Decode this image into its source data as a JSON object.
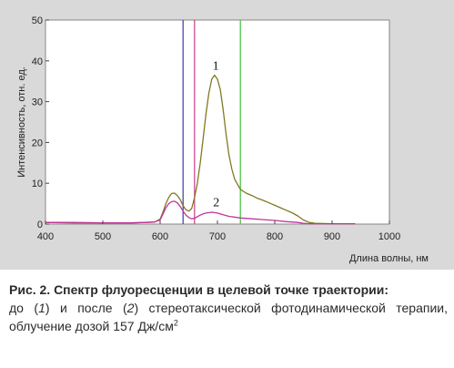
{
  "chart_data": {
    "type": "line",
    "xlabel": "Длина волны, нм",
    "ylabel": "Интенсивность, отн. ед.",
    "xlim": [
      400,
      1000
    ],
    "ylim": [
      0,
      50
    ],
    "xticks": [
      400,
      500,
      600,
      700,
      800,
      900,
      1000
    ],
    "yticks": [
      0,
      10,
      20,
      30,
      40,
      50
    ],
    "grid": false,
    "series": [
      {
        "name": "1",
        "color": "#7e7a22",
        "x": [
          400,
          450,
          500,
          550,
          590,
          600,
          605,
          610,
          615,
          620,
          625,
          630,
          635,
          640,
          645,
          650,
          655,
          660,
          665,
          670,
          675,
          680,
          685,
          690,
          695,
          700,
          705,
          710,
          715,
          720,
          725,
          730,
          740,
          750,
          760,
          770,
          780,
          790,
          800,
          810,
          820,
          830,
          840,
          850,
          860,
          870,
          900,
          940
        ],
        "y": [
          0.4,
          0.4,
          0.3,
          0.3,
          0.5,
          1.2,
          3.0,
          5.0,
          6.5,
          7.5,
          7.6,
          7.0,
          6.0,
          4.5,
          3.5,
          3.2,
          3.8,
          6.5,
          10.0,
          15.0,
          21.0,
          27.0,
          32.0,
          35.5,
          36.5,
          35.5,
          33.0,
          28.0,
          22.0,
          17.0,
          13.5,
          11.0,
          8.5,
          7.6,
          7.0,
          6.3,
          5.8,
          5.2,
          4.6,
          4.0,
          3.4,
          2.8,
          2.0,
          1.0,
          0.4,
          0.2,
          0.1,
          0.1
        ]
      },
      {
        "name": "2",
        "color": "#c0359b",
        "x": [
          400,
          450,
          500,
          550,
          590,
          600,
          605,
          610,
          615,
          620,
          625,
          630,
          635,
          640,
          645,
          650,
          655,
          660,
          665,
          670,
          675,
          680,
          690,
          700,
          710,
          720,
          740,
          760,
          780,
          800,
          820,
          840,
          850,
          860,
          900,
          940
        ],
        "y": [
          0.4,
          0.3,
          0.3,
          0.3,
          0.5,
          1.0,
          2.5,
          4.0,
          5.0,
          5.5,
          5.6,
          5.2,
          4.3,
          3.2,
          2.2,
          1.6,
          1.3,
          1.4,
          1.8,
          2.2,
          2.5,
          2.7,
          2.9,
          2.7,
          2.3,
          1.9,
          1.5,
          1.3,
          1.1,
          0.9,
          0.6,
          0.4,
          0.2,
          0.1,
          0.1,
          0.1
        ]
      }
    ],
    "vlines": [
      {
        "x": 640,
        "color": "#3b3ba8"
      },
      {
        "x": 660,
        "color": "#cc3c8c"
      },
      {
        "x": 740,
        "color": "#3fbf3a"
      }
    ],
    "annotations": [
      {
        "text": "1",
        "x": 697,
        "y": 37.8
      },
      {
        "text": "2",
        "x": 698,
        "y": 4.3
      }
    ]
  },
  "caption": {
    "title": "Рис. 2. Спектр флуоресценции в целевой точке траектории:",
    "body_p1": "до (",
    "body_n1": "1",
    "body_p2": ") и после (",
    "body_n2": "2",
    "body_p3": ") стереотаксической фотодинамической терапии, облучение дозой 157 Дж/см",
    "body_sup": "2"
  }
}
